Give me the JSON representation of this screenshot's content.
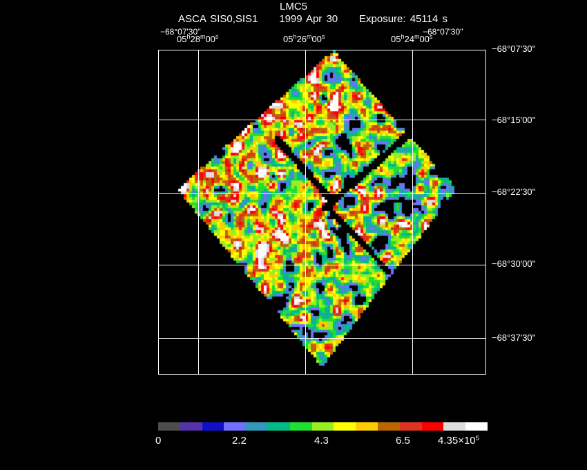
{
  "header": {
    "title": "LMC5",
    "mission": "ASCA SIS0,SIS1",
    "date": "1999 Apr 30",
    "exposure": "Exposure: 45114 s"
  },
  "ra_axis": {
    "corner_left": "−68°07'30''",
    "corner_right": "−68°07'30''",
    "ticks": [
      {
        "h": "05",
        "m": "28",
        "s": "00"
      },
      {
        "h": "05",
        "m": "26",
        "s": "00"
      },
      {
        "h": "05",
        "m": "24",
        "s": "00"
      }
    ]
  },
  "dec_axis": {
    "ticks": [
      "−68°07'30''",
      "−68°15'00''",
      "−68°22'30''",
      "−68°30'00''",
      "−68°37'30''"
    ]
  },
  "colorbar": {
    "colors": [
      "#4d4d4d",
      "#5533aa",
      "#1010c8",
      "#7070ff",
      "#3399bb",
      "#00bb88",
      "#22dd33",
      "#99ee22",
      "#ffff00",
      "#ffcc00",
      "#bb6600",
      "#dd3322",
      "#ff0000",
      "#dddddd",
      "#ffffff"
    ],
    "labels": [
      "0",
      "2.2",
      "4.3",
      "6.5"
    ],
    "scale_label": "4.35×10",
    "scale_exp": "5"
  }
}
